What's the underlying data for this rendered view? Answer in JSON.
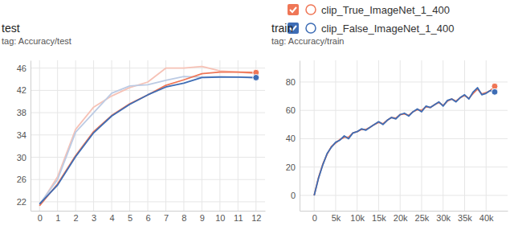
{
  "chart_data": [
    {
      "type": "line",
      "title": "test",
      "subtitle": "tag: Accuracy/test",
      "legend": "top-right",
      "grid": true,
      "x": [
        0,
        1,
        2,
        3,
        4,
        5,
        6,
        7,
        8,
        9,
        10,
        11,
        12
      ],
      "xlim": [
        -0.5,
        12.5
      ],
      "xticks": [
        0,
        1,
        2,
        3,
        4,
        5,
        6,
        7,
        8,
        9,
        10,
        11,
        12
      ],
      "ylim": [
        20.4,
        47.4
      ],
      "yticks": [
        22,
        26,
        30,
        34,
        38,
        42,
        46
      ],
      "series": [
        {
          "color": "#f6c2b6",
          "values": [
            21.3,
            26.5,
            35,
            39,
            41,
            42.5,
            43.5,
            46,
            46,
            46.3,
            45.5,
            45.3,
            45.0
          ]
        },
        {
          "color": "#bccbe4",
          "values": [
            21.6,
            26,
            34.5,
            38,
            41.5,
            42.8,
            43,
            43.8,
            44.5,
            44.4,
            44.5,
            44.4,
            44.2
          ]
        },
        {
          "name": "clip_True_ImageNet_1_400",
          "color": "#ef7656",
          "marker": "circle",
          "values": [
            21.3,
            25.2,
            30.3,
            34.6,
            37.5,
            39.6,
            41.2,
            42.9,
            43.9,
            45.0,
            45.3,
            45.3,
            45.2
          ]
        },
        {
          "name": "clip_False_ImageNet_1_400",
          "color": "#3e6db5",
          "marker": "circle",
          "values": [
            21.6,
            25.0,
            30.1,
            34.4,
            37.4,
            39.5,
            41.2,
            42.6,
            43.3,
            44.3,
            44.4,
            44.4,
            44.3
          ]
        }
      ]
    },
    {
      "type": "line",
      "title": "train",
      "subtitle": "tag: Accuracy/train",
      "grid": true,
      "x": [
        0,
        1000,
        2000,
        3000,
        4000,
        5000,
        6000,
        7000,
        8000,
        9000,
        10000,
        11000,
        12000,
        13000,
        14000,
        15000,
        16000,
        17000,
        18000,
        19000,
        20000,
        21000,
        22000,
        23000,
        24000,
        25000,
        26000,
        27000,
        28000,
        29000,
        30000,
        31000,
        32000,
        33000,
        34000,
        35000,
        36000,
        37000,
        38000,
        39000,
        40000,
        41000,
        42000
      ],
      "xlim": [
        -3400,
        45000
      ],
      "xticks": [
        0,
        {
          "value": 5000,
          "label": "5k"
        },
        {
          "value": 10000,
          "label": "10k"
        },
        {
          "value": 15000,
          "label": "15k"
        },
        {
          "value": 20000,
          "label": "20k"
        },
        {
          "value": 25000,
          "label": "25k"
        },
        {
          "value": 30000,
          "label": "30k"
        },
        {
          "value": 35000,
          "label": "35k"
        },
        {
          "value": 40000,
          "label": "40k"
        }
      ],
      "ylim": [
        -10.8,
        95.3
      ],
      "yticks": [
        0,
        20,
        40,
        60,
        80
      ],
      "series": [
        {
          "color": "#ef7656",
          "marker": "circle",
          "values": [
            0,
            12.5,
            22,
            29,
            34.5,
            37,
            39.5,
            41,
            41,
            44,
            45,
            46.5,
            46.5,
            48,
            50,
            51.5,
            50.5,
            53,
            55,
            54.5,
            57,
            57.5,
            56.5,
            59,
            60.5,
            60,
            62.5,
            62,
            64,
            65.5,
            63.5,
            66.5,
            68,
            66.5,
            69,
            70.5,
            68.5,
            72,
            75,
            71.5,
            72.5,
            74,
            77
          ]
        },
        {
          "color": "#3e6db5",
          "marker": "circle",
          "values": [
            0,
            12,
            21.5,
            29.5,
            34,
            37.5,
            39,
            42,
            40,
            44,
            45,
            47,
            46,
            48,
            50,
            52,
            50,
            53,
            55,
            54,
            57,
            58,
            56,
            59,
            61,
            59,
            63,
            62,
            64,
            66,
            63,
            67,
            68,
            66,
            69,
            71,
            68,
            73,
            76,
            71,
            72,
            74,
            73
          ]
        }
      ]
    }
  ]
}
